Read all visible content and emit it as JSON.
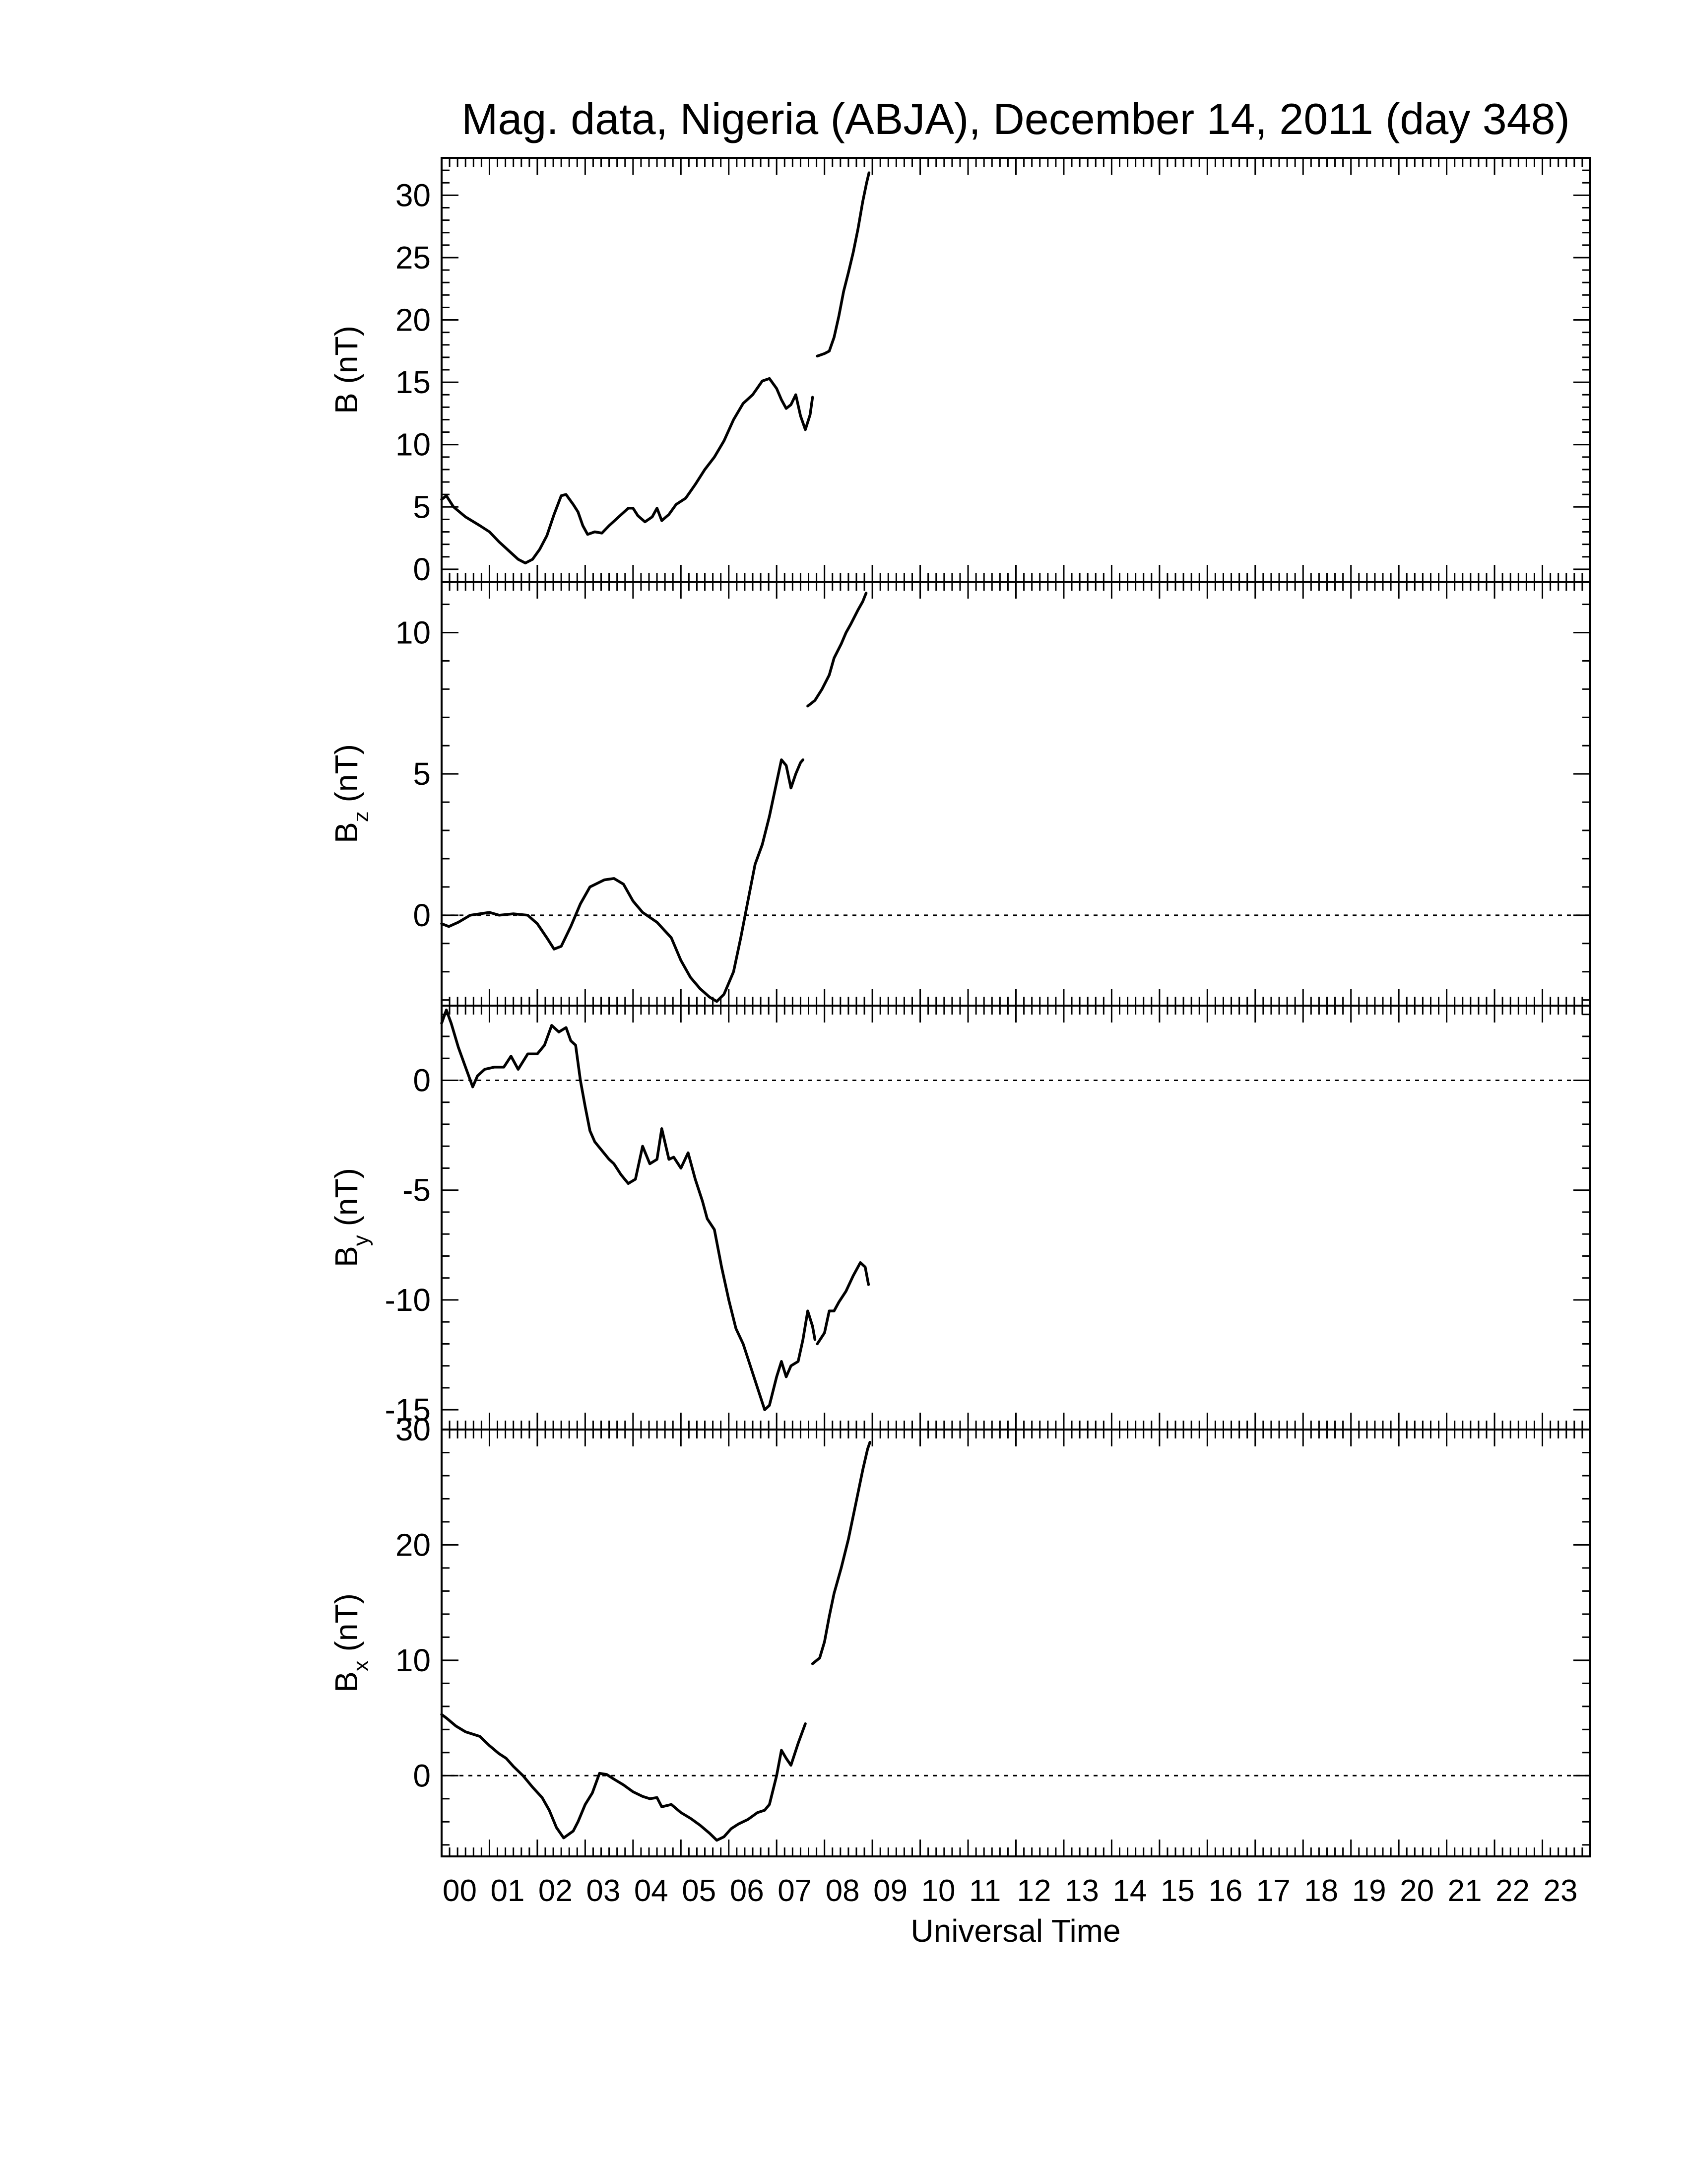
{
  "chart_data": {
    "type": "line",
    "title": "Mag. data, Nigeria (ABJA), December 14, 2011 (day 348)",
    "xlabel": "Universal Time",
    "xlim": [
      0,
      24
    ],
    "x_tick_labels": [
      "00",
      "01",
      "02",
      "03",
      "04",
      "05",
      "06",
      "07",
      "08",
      "09",
      "10",
      "11",
      "12",
      "13",
      "14",
      "15",
      "16",
      "17",
      "18",
      "19",
      "20",
      "21",
      "22",
      "23"
    ],
    "grid": false,
    "panels": [
      {
        "id": "B",
        "ylabel_main": "B",
        "ylabel_sub": "",
        "ylabel_unit": " (nT)",
        "ylim": [
          -1,
          33
        ],
        "yticks": [
          0,
          5,
          10,
          15,
          20,
          25,
          30
        ],
        "ytick_labels": [
          "0",
          "5",
          "10",
          "15",
          "20",
          "25",
          "30"
        ],
        "zero_line": false,
        "segments": [
          [
            [
              0,
              5.6
            ],
            [
              0.1,
              5.9
            ],
            [
              0.25,
              5.0
            ],
            [
              0.5,
              4.2
            ],
            [
              0.8,
              3.5
            ],
            [
              1.0,
              3.0
            ],
            [
              1.2,
              2.2
            ],
            [
              1.4,
              1.5
            ],
            [
              1.6,
              0.8
            ],
            [
              1.75,
              0.5
            ],
            [
              1.9,
              0.8
            ],
            [
              2.05,
              1.6
            ],
            [
              2.2,
              2.7
            ],
            [
              2.35,
              4.4
            ],
            [
              2.5,
              5.9
            ],
            [
              2.6,
              6.0
            ],
            [
              2.75,
              5.2
            ],
            [
              2.85,
              4.6
            ],
            [
              2.95,
              3.5
            ],
            [
              3.05,
              2.8
            ],
            [
              3.2,
              3.0
            ],
            [
              3.35,
              2.9
            ],
            [
              3.5,
              3.5
            ],
            [
              3.7,
              4.2
            ],
            [
              3.9,
              4.9
            ],
            [
              4.0,
              4.9
            ],
            [
              4.1,
              4.3
            ],
            [
              4.25,
              3.8
            ],
            [
              4.4,
              4.2
            ],
            [
              4.5,
              4.9
            ],
            [
              4.6,
              3.9
            ],
            [
              4.75,
              4.4
            ],
            [
              4.9,
              5.2
            ],
            [
              5.1,
              5.7
            ],
            [
              5.3,
              6.8
            ],
            [
              5.5,
              8.0
            ],
            [
              5.7,
              9.0
            ],
            [
              5.9,
              10.3
            ],
            [
              6.1,
              12.0
            ],
            [
              6.3,
              13.3
            ],
            [
              6.5,
              14.0
            ],
            [
              6.7,
              15.1
            ],
            [
              6.85,
              15.3
            ],
            [
              7.0,
              14.5
            ],
            [
              7.1,
              13.6
            ],
            [
              7.2,
              12.9
            ],
            [
              7.3,
              13.2
            ],
            [
              7.4,
              14.0
            ],
            [
              7.5,
              12.3
            ],
            [
              7.6,
              11.2
            ],
            [
              7.7,
              12.4
            ],
            [
              7.75,
              13.8
            ]
          ],
          [
            [
              7.85,
              17.1
            ],
            [
              8.0,
              17.3
            ],
            [
              8.1,
              17.5
            ],
            [
              8.2,
              18.6
            ],
            [
              8.3,
              20.3
            ],
            [
              8.4,
              22.3
            ],
            [
              8.5,
              23.8
            ],
            [
              8.6,
              25.4
            ],
            [
              8.7,
              27.3
            ],
            [
              8.8,
              29.5
            ],
            [
              8.88,
              31.0
            ],
            [
              8.93,
              31.8
            ]
          ]
        ]
      },
      {
        "id": "Bz",
        "ylabel_main": "B",
        "ylabel_sub": "z",
        "ylabel_unit": " (nT)",
        "ylim": [
          -3.2,
          11.8
        ],
        "yticks": [
          0,
          5,
          10
        ],
        "ytick_labels": [
          "0",
          "5",
          "10"
        ],
        "zero_line": true,
        "segments": [
          [
            [
              0,
              -0.3
            ],
            [
              0.15,
              -0.4
            ],
            [
              0.35,
              -0.25
            ],
            [
              0.6,
              0.0
            ],
            [
              0.8,
              0.05
            ],
            [
              1.0,
              0.1
            ],
            [
              1.2,
              0.0
            ],
            [
              1.5,
              0.05
            ],
            [
              1.8,
              0.0
            ],
            [
              2.0,
              -0.3
            ],
            [
              2.2,
              -0.8
            ],
            [
              2.35,
              -1.2
            ],
            [
              2.5,
              -1.1
            ],
            [
              2.7,
              -0.4
            ],
            [
              2.9,
              0.4
            ],
            [
              3.1,
              1.0
            ],
            [
              3.4,
              1.25
            ],
            [
              3.6,
              1.3
            ],
            [
              3.8,
              1.1
            ],
            [
              4.0,
              0.5
            ],
            [
              4.2,
              0.1
            ],
            [
              4.5,
              -0.25
            ],
            [
              4.8,
              -0.8
            ],
            [
              5.0,
              -1.6
            ],
            [
              5.2,
              -2.2
            ],
            [
              5.4,
              -2.6
            ],
            [
              5.6,
              -2.9
            ],
            [
              5.75,
              -3.05
            ],
            [
              5.9,
              -2.8
            ],
            [
              6.1,
              -2.0
            ],
            [
              6.25,
              -0.8
            ],
            [
              6.4,
              0.5
            ],
            [
              6.55,
              1.8
            ],
            [
              6.7,
              2.5
            ],
            [
              6.85,
              3.5
            ],
            [
              7.0,
              4.7
            ],
            [
              7.1,
              5.5
            ],
            [
              7.2,
              5.3
            ],
            [
              7.3,
              4.5
            ],
            [
              7.4,
              5.0
            ],
            [
              7.5,
              5.4
            ],
            [
              7.55,
              5.5
            ]
          ],
          [
            [
              7.65,
              7.4
            ],
            [
              7.8,
              7.6
            ],
            [
              7.95,
              8.0
            ],
            [
              8.1,
              8.5
            ],
            [
              8.2,
              9.1
            ],
            [
              8.35,
              9.6
            ],
            [
              8.45,
              10.0
            ],
            [
              8.55,
              10.3
            ],
            [
              8.7,
              10.8
            ],
            [
              8.8,
              11.1
            ],
            [
              8.87,
              11.4
            ]
          ]
        ]
      },
      {
        "id": "By",
        "ylabel_main": "B",
        "ylabel_sub": "y",
        "ylabel_unit": " (nT)",
        "ylim": [
          -15.9,
          3.4
        ],
        "yticks": [
          -15,
          -10,
          -5,
          0
        ],
        "ytick_labels": [
          "-15",
          "-10",
          "-5",
          "0"
        ],
        "zero_line": true,
        "segments": [
          [
            [
              0,
              2.6
            ],
            [
              0.1,
              3.2
            ],
            [
              0.2,
              2.6
            ],
            [
              0.35,
              1.5
            ],
            [
              0.5,
              0.6
            ],
            [
              0.65,
              -0.3
            ],
            [
              0.75,
              0.2
            ],
            [
              0.9,
              0.5
            ],
            [
              1.1,
              0.6
            ],
            [
              1.3,
              0.6
            ],
            [
              1.45,
              1.1
            ],
            [
              1.6,
              0.5
            ],
            [
              1.8,
              1.2
            ],
            [
              2.0,
              1.2
            ],
            [
              2.15,
              1.6
            ],
            [
              2.3,
              2.5
            ],
            [
              2.45,
              2.2
            ],
            [
              2.6,
              2.4
            ],
            [
              2.7,
              1.8
            ],
            [
              2.8,
              1.6
            ],
            [
              2.9,
              0.0
            ],
            [
              3.0,
              -1.2
            ],
            [
              3.1,
              -2.3
            ],
            [
              3.2,
              -2.8
            ],
            [
              3.35,
              -3.2
            ],
            [
              3.5,
              -3.6
            ],
            [
              3.6,
              -3.8
            ],
            [
              3.75,
              -4.3
            ],
            [
              3.9,
              -4.7
            ],
            [
              4.05,
              -4.5
            ],
            [
              4.2,
              -3.0
            ],
            [
              4.35,
              -3.8
            ],
            [
              4.5,
              -3.6
            ],
            [
              4.6,
              -2.2
            ],
            [
              4.75,
              -3.6
            ],
            [
              4.85,
              -3.5
            ],
            [
              5.0,
              -4.0
            ],
            [
              5.15,
              -3.3
            ],
            [
              5.3,
              -4.5
            ],
            [
              5.45,
              -5.5
            ],
            [
              5.55,
              -6.3
            ],
            [
              5.7,
              -6.8
            ],
            [
              5.85,
              -8.5
            ],
            [
              6.0,
              -10.0
            ],
            [
              6.15,
              -11.3
            ],
            [
              6.3,
              -12.0
            ],
            [
              6.45,
              -13.0
            ],
            [
              6.6,
              -14.0
            ],
            [
              6.75,
              -15.0
            ],
            [
              6.85,
              -14.8
            ],
            [
              7.0,
              -13.5
            ],
            [
              7.1,
              -12.8
            ],
            [
              7.2,
              -13.5
            ],
            [
              7.3,
              -13.0
            ],
            [
              7.45,
              -12.8
            ],
            [
              7.55,
              -11.8
            ],
            [
              7.65,
              -10.5
            ],
            [
              7.75,
              -11.2
            ],
            [
              7.8,
              -11.8
            ]
          ],
          [
            [
              7.85,
              -12.0
            ],
            [
              8.0,
              -11.5
            ],
            [
              8.1,
              -10.5
            ],
            [
              8.2,
              -10.5
            ],
            [
              8.3,
              -10.1
            ],
            [
              8.45,
              -9.6
            ],
            [
              8.6,
              -8.9
            ],
            [
              8.75,
              -8.3
            ],
            [
              8.85,
              -8.5
            ],
            [
              8.92,
              -9.3
            ]
          ]
        ]
      },
      {
        "id": "Bx",
        "ylabel_main": "B",
        "ylabel_sub": "x",
        "ylabel_unit": " (nT)",
        "ylim": [
          -7,
          30
        ],
        "yticks": [
          0,
          10,
          20,
          30
        ],
        "ytick_labels": [
          "0",
          "10",
          "20",
          "30"
        ],
        "zero_line": true,
        "segments": [
          [
            [
              0,
              5.3
            ],
            [
              0.1,
              5.0
            ],
            [
              0.3,
              4.3
            ],
            [
              0.5,
              3.8
            ],
            [
              0.8,
              3.4
            ],
            [
              1.0,
              2.6
            ],
            [
              1.2,
              1.9
            ],
            [
              1.35,
              1.5
            ],
            [
              1.5,
              0.8
            ],
            [
              1.7,
              0.0
            ],
            [
              1.9,
              -1.0
            ],
            [
              2.1,
              -1.9
            ],
            [
              2.25,
              -3.0
            ],
            [
              2.4,
              -4.5
            ],
            [
              2.55,
              -5.4
            ],
            [
              2.75,
              -4.8
            ],
            [
              2.85,
              -4.0
            ],
            [
              3.0,
              -2.5
            ],
            [
              3.15,
              -1.5
            ],
            [
              3.3,
              0.2
            ],
            [
              3.45,
              0.1
            ],
            [
              3.6,
              -0.3
            ],
            [
              3.8,
              -0.8
            ],
            [
              4.0,
              -1.4
            ],
            [
              4.2,
              -1.8
            ],
            [
              4.35,
              -2.0
            ],
            [
              4.5,
              -1.9
            ],
            [
              4.6,
              -2.7
            ],
            [
              4.8,
              -2.5
            ],
            [
              5.0,
              -3.2
            ],
            [
              5.2,
              -3.7
            ],
            [
              5.4,
              -4.3
            ],
            [
              5.6,
              -5.0
            ],
            [
              5.75,
              -5.6
            ],
            [
              5.9,
              -5.3
            ],
            [
              6.05,
              -4.6
            ],
            [
              6.2,
              -4.2
            ],
            [
              6.4,
              -3.8
            ],
            [
              6.6,
              -3.2
            ],
            [
              6.75,
              -3.0
            ],
            [
              6.85,
              -2.5
            ],
            [
              7.0,
              0.0
            ],
            [
              7.1,
              2.2
            ],
            [
              7.2,
              1.5
            ],
            [
              7.3,
              0.9
            ],
            [
              7.45,
              2.8
            ],
            [
              7.6,
              4.5
            ]
          ],
          [
            [
              7.75,
              9.7
            ],
            [
              7.9,
              10.2
            ],
            [
              8.0,
              11.6
            ],
            [
              8.1,
              13.8
            ],
            [
              8.2,
              15.8
            ],
            [
              8.35,
              18.0
            ],
            [
              8.5,
              20.5
            ],
            [
              8.65,
              23.5
            ],
            [
              8.8,
              26.5
            ],
            [
              8.9,
              28.3
            ],
            [
              8.95,
              28.9
            ]
          ]
        ]
      }
    ]
  }
}
